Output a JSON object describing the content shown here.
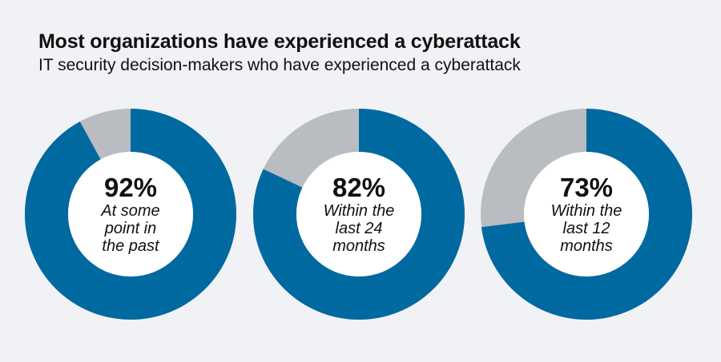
{
  "title": "Most organizations have experienced a cyberattack",
  "subtitle": "IT security decision-makers who have experienced a cyberattack",
  "colors": {
    "filled": "#0069a0",
    "remainder": "#b9bcc1",
    "hole": "#ffffff"
  },
  "chart_data": {
    "type": "pie",
    "title": "Most organizations have experienced a cyberattack",
    "subtitle": "IT security decision-makers who have experienced a cyberattack",
    "unit": "%",
    "series": [
      {
        "name": "At some point in the past",
        "value": 92,
        "label": "92%",
        "desc_lines": [
          "At some",
          "point in",
          "the past"
        ]
      },
      {
        "name": "Within the last 24 months",
        "value": 82,
        "label": "82%",
        "desc_lines": [
          "Within the",
          "last 24",
          "months"
        ]
      },
      {
        "name": "Within the last 12 months",
        "value": 73,
        "label": "73%",
        "desc_lines": [
          "Within the",
          "last 12",
          "months"
        ]
      }
    ]
  }
}
